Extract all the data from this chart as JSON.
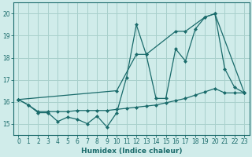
{
  "xlabel": "Humidex (Indice chaleur)",
  "xlim": [
    -0.5,
    23.5
  ],
  "ylim": [
    14.5,
    20.5
  ],
  "yticks": [
    15,
    16,
    17,
    18,
    19,
    20
  ],
  "xticks": [
    0,
    1,
    2,
    3,
    4,
    5,
    6,
    7,
    8,
    9,
    10,
    11,
    12,
    13,
    14,
    15,
    16,
    17,
    18,
    19,
    20,
    21,
    22,
    23
  ],
  "background_color": "#d0ecea",
  "grid_color": "#a8d0cc",
  "line_color": "#1a6b6b",
  "series1_x": [
    0,
    1,
    2,
    3,
    4,
    5,
    6,
    7,
    8,
    9,
    10,
    11,
    12,
    13,
    14,
    15,
    16,
    17,
    18,
    19,
    20,
    21,
    22,
    23
  ],
  "series1_y": [
    16.1,
    15.85,
    15.5,
    15.5,
    15.1,
    15.3,
    15.2,
    15.0,
    15.35,
    14.85,
    15.5,
    17.1,
    19.5,
    18.15,
    16.15,
    16.15,
    18.4,
    17.85,
    19.3,
    19.85,
    20.0,
    17.5,
    16.65,
    16.4
  ],
  "series2_x": [
    0,
    1,
    2,
    3,
    4,
    5,
    6,
    7,
    8,
    9,
    10,
    11,
    12,
    13,
    14,
    15,
    16,
    17,
    18,
    19,
    20,
    21,
    22,
    23
  ],
  "series2_y": [
    16.1,
    15.85,
    15.55,
    15.55,
    15.55,
    15.55,
    15.6,
    15.6,
    15.6,
    15.6,
    15.65,
    15.7,
    15.75,
    15.8,
    15.85,
    15.95,
    16.05,
    16.15,
    16.3,
    16.45,
    16.6,
    16.4,
    16.4,
    16.4
  ],
  "series3_x": [
    0,
    10,
    12,
    13,
    16,
    17,
    19,
    20,
    23
  ],
  "series3_y": [
    16.1,
    16.5,
    18.15,
    18.15,
    19.2,
    19.2,
    19.85,
    20.0,
    16.4
  ]
}
